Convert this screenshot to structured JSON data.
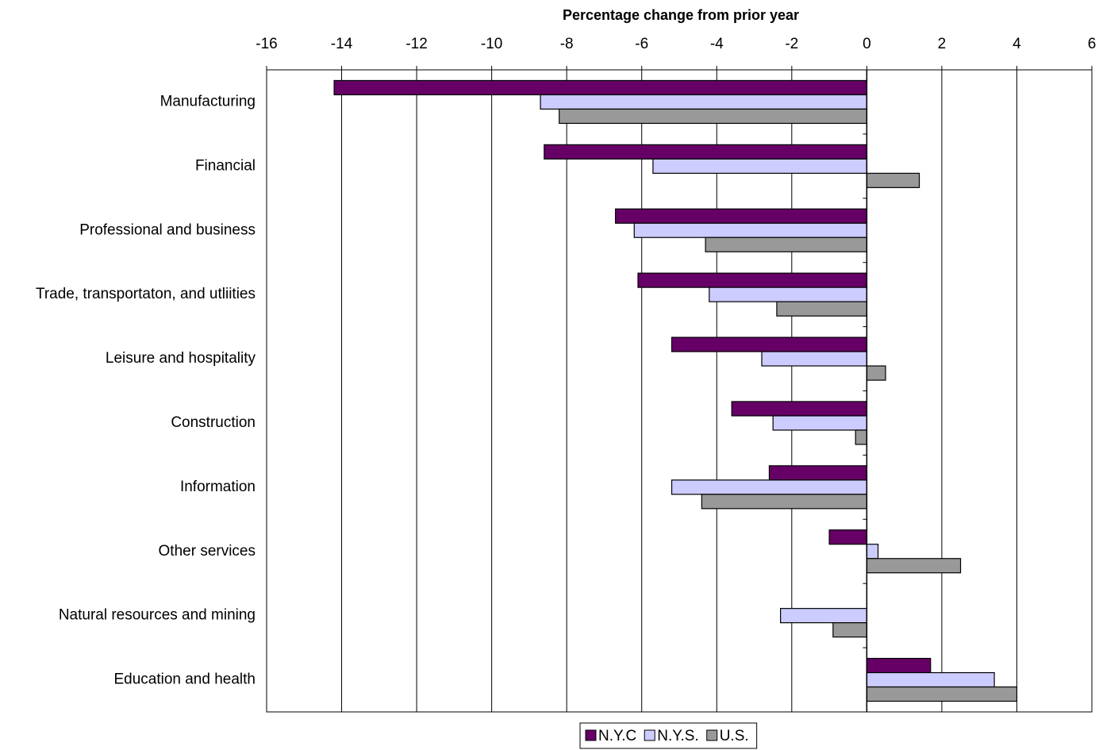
{
  "chart_data": {
    "type": "hbar",
    "title": "Percentage change from prior year",
    "categories": [
      "Manufacturing",
      "Financial",
      "Professional and business",
      "Trade, transportaton, and utliities",
      "Leisure and hospitality",
      "Construction",
      "Information",
      "Other services",
      "Natural resources and mining",
      "Education and health"
    ],
    "series": [
      {
        "name": "N.Y.C",
        "color": "#660066",
        "values": [
          -14.2,
          -8.6,
          -6.7,
          -6.1,
          -5.2,
          -3.6,
          -2.6,
          -1.0,
          null,
          1.7
        ]
      },
      {
        "name": "N.Y.S.",
        "color": "#ccccff",
        "values": [
          -8.7,
          -5.7,
          -6.2,
          -4.2,
          -2.8,
          -2.5,
          -5.2,
          0.3,
          -2.3,
          3.4
        ]
      },
      {
        "name": "U.S.",
        "color": "#999999",
        "values": [
          -8.2,
          1.4,
          -4.3,
          -2.4,
          0.5,
          -0.3,
          -4.4,
          2.5,
          -0.9,
          4.0
        ]
      }
    ],
    "xlim": [
      -16,
      6
    ],
    "xticks": [
      -16,
      -14,
      -12,
      -10,
      -8,
      -6,
      -4,
      -2,
      0,
      2,
      4,
      6
    ],
    "grid": true
  }
}
